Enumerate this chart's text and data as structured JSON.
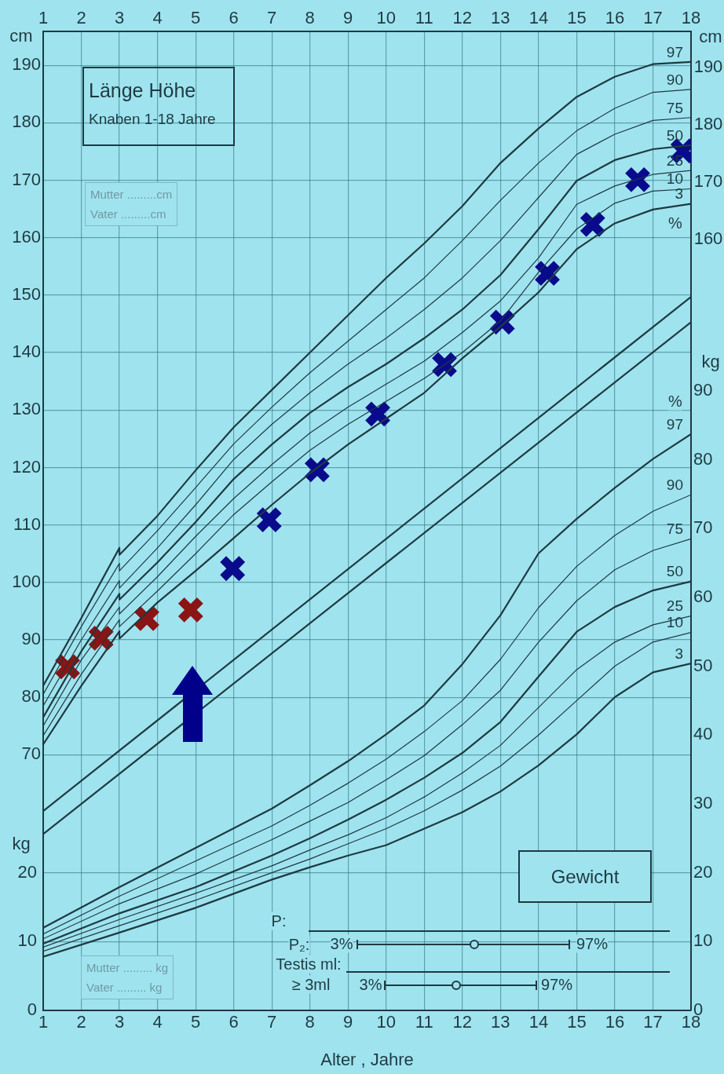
{
  "chart_data": {
    "type": "line",
    "title": "Länge Höhe",
    "subtitle": "Knaben 1-18 Jahre",
    "xlabel": "Alter , Jahre",
    "ylabel": "cm",
    "y2label": "kg",
    "y3label": "kg",
    "xlim": [
      1,
      18
    ],
    "xticks": [
      1,
      2,
      3,
      4,
      5,
      6,
      7,
      8,
      9,
      10,
      11,
      12,
      13,
      14,
      15,
      16,
      17,
      18
    ],
    "x2lim": [
      1,
      18
    ],
    "x2ticks": [
      1,
      2,
      3,
      4,
      5,
      6,
      7,
      8,
      9,
      10,
      11,
      12,
      13,
      14,
      15,
      16,
      17,
      18
    ],
    "ylim": [
      25.5,
      195.9
    ],
    "yticks": [
      70,
      80,
      90,
      100,
      110,
      120,
      130,
      140,
      150,
      160,
      170,
      180,
      190
    ],
    "y2lim": [
      0,
      142.2
    ],
    "y2ticks": [
      0,
      10,
      20,
      30,
      40,
      50,
      60,
      70,
      80,
      90
    ],
    "y3lim": [
      0,
      142.2
    ],
    "y3ticks": [
      0,
      10,
      20
    ],
    "grid": true,
    "marker": "none",
    "line_style": "solid",
    "annotations": [
      "Mutter .........cm",
      "Vater .........cm",
      "Mutter ......... kg",
      "Vater ......... kg",
      "Gewicht",
      "P:",
      "P₂:",
      "3%",
      "97%",
      "Testis ml:",
      "≥ 3ml",
      "3%",
      "97%",
      "%",
      "%",
      "cm",
      "190",
      "180",
      "170",
      "160"
    ],
    "series": [
      {
        "name": "97",
        "color": "#1e3a40",
        "x": [
          1,
          2,
          3,
          3,
          4,
          5,
          6,
          7,
          8,
          9,
          10,
          11,
          12,
          13,
          14,
          15,
          16,
          17,
          18
        ],
        "values": [
          82,
          93.8,
          106,
          104.8,
          111.6,
          119.5,
          127,
          133.5,
          140,
          146.5,
          153,
          159,
          165.5,
          173,
          179,
          184.5,
          188,
          190.2,
          190.6
        ]
      },
      {
        "name": "90",
        "color": "#1e3a40",
        "x": [
          1,
          2,
          3,
          3,
          4,
          5,
          6,
          7,
          8,
          9,
          10,
          11,
          12,
          13,
          14,
          15,
          16,
          17,
          18
        ],
        "values": [
          80.5,
          92.3,
          103.3,
          102,
          109,
          116.5,
          124.1,
          130.5,
          136.5,
          142,
          147.5,
          153,
          159.5,
          166.5,
          173,
          178.6,
          182.5,
          185.3,
          185.8
        ]
      },
      {
        "name": "75",
        "color": "#1e3a40",
        "x": [
          1,
          2,
          3,
          3,
          4,
          5,
          6,
          7,
          8,
          9,
          10,
          11,
          12,
          13,
          14,
          15,
          16,
          17,
          18
        ],
        "values": [
          78.5,
          90,
          100.3,
          99,
          106,
          113.5,
          121.4,
          127.5,
          133,
          138,
          142.5,
          147.5,
          153,
          159.5,
          167,
          174.5,
          178,
          180.4,
          180.9
        ]
      },
      {
        "name": "50",
        "color": "#1e3a40",
        "x": [
          1,
          2,
          3,
          3,
          4,
          5,
          6,
          7,
          8,
          9,
          10,
          11,
          12,
          13,
          14,
          15,
          16,
          17,
          18
        ],
        "values": [
          76.5,
          88,
          98,
          97,
          103.5,
          110.5,
          118,
          124,
          129.5,
          134,
          138,
          142.5,
          147.5,
          153.5,
          161.5,
          169.9,
          173.5,
          175.4,
          176.1
        ]
      },
      {
        "name": "25",
        "color": "#1e3a40",
        "x": [
          1,
          2,
          3,
          3,
          4,
          5,
          6,
          7,
          8,
          9,
          10,
          11,
          12,
          13,
          14,
          15,
          16,
          17,
          18
        ],
        "values": [
          75,
          86.5,
          95.7,
          94.5,
          101,
          108,
          114.6,
          120.5,
          126,
          130.5,
          134.5,
          138.5,
          143.5,
          149,
          156.5,
          165.8,
          169,
          171,
          171.7
        ]
      },
      {
        "name": "10",
        "color": "#1e3a40",
        "x": [
          1,
          2,
          3,
          3,
          4,
          5,
          6,
          7,
          8,
          9,
          10,
          11,
          12,
          13,
          14,
          15,
          16,
          17,
          18
        ],
        "values": [
          73.3,
          84,
          93.5,
          92.3,
          98.5,
          105,
          111.8,
          117.5,
          123,
          127.5,
          131.5,
          135.5,
          140,
          145.5,
          154,
          161.5,
          166,
          168.1,
          168.5
        ]
      },
      {
        "name": "3",
        "color": "#1e3a40",
        "x": [
          1,
          2,
          3,
          3,
          4,
          5,
          6,
          7,
          8,
          9,
          10,
          11,
          12,
          13,
          14,
          15,
          16,
          17,
          18
        ],
        "values": [
          71.8,
          82,
          91.5,
          90.2,
          96.5,
          102,
          107.7,
          113.5,
          119,
          124,
          128.5,
          133,
          139,
          144.5,
          150.5,
          158,
          162.5,
          164.9,
          165.9
        ]
      },
      {
        "name": "97",
        "color": "#1e3a40",
        "axis": "y2",
        "x": [
          1,
          3,
          5,
          7,
          8,
          9,
          10,
          11,
          12,
          13,
          14,
          15,
          16,
          17,
          18
        ],
        "values": [
          12,
          17.9,
          23.6,
          29.3,
          32.7,
          36.2,
          40.1,
          44.3,
          50.3,
          57.4,
          66.4,
          71.4,
          75.9,
          80.1,
          83.7
        ]
      },
      {
        "name": "90",
        "color": "#1e3a40",
        "axis": "y2",
        "x": [
          1,
          3,
          5,
          7,
          8,
          9,
          10,
          11,
          12,
          13,
          14,
          15,
          16,
          17,
          18
        ],
        "values": [
          11.1,
          16.6,
          21.7,
          26.8,
          29.8,
          33,
          36.5,
          40.5,
          45,
          51,
          58.5,
          64.5,
          69,
          72.5,
          74.9
        ]
      },
      {
        "name": "75",
        "color": "#1e3a40",
        "axis": "y2",
        "x": [
          1,
          3,
          5,
          7,
          8,
          9,
          10,
          11,
          12,
          13,
          14,
          15,
          16,
          17,
          18
        ],
        "values": [
          10.4,
          15.5,
          19.8,
          24.8,
          27.5,
          30.2,
          33.5,
          37,
          41.5,
          46.5,
          53.5,
          59.5,
          64,
          66.8,
          68.5
        ]
      },
      {
        "name": "50",
        "color": "#1e3a40",
        "axis": "y2",
        "x": [
          1,
          3,
          5,
          7,
          8,
          9,
          10,
          11,
          12,
          13,
          14,
          15,
          16,
          17,
          18
        ],
        "values": [
          9.7,
          14.1,
          17.9,
          22.5,
          25,
          27.7,
          30.6,
          33.8,
          37.4,
          41.9,
          48.5,
          55,
          58.6,
          61,
          62.3
        ]
      },
      {
        "name": "25",
        "color": "#1e3a40",
        "axis": "y2",
        "x": [
          1,
          3,
          5,
          7,
          8,
          9,
          10,
          11,
          12,
          13,
          14,
          15,
          16,
          17,
          18
        ],
        "values": [
          9.2,
          13.2,
          17,
          21,
          23.3,
          25.5,
          28,
          31,
          34.5,
          38.5,
          44,
          49.5,
          53.5,
          56,
          57.3
        ]
      },
      {
        "name": "10",
        "color": "#1e3a40",
        "axis": "y2",
        "x": [
          1,
          3,
          5,
          7,
          8,
          9,
          10,
          11,
          12,
          13,
          14,
          15,
          16,
          17,
          18
        ],
        "values": [
          8.6,
          12.3,
          16,
          20,
          22,
          24.2,
          26.4,
          29,
          32,
          35.5,
          40,
          45,
          50,
          53.5,
          54.9
        ]
      },
      {
        "name": "3",
        "color": "#1e3a40",
        "axis": "y2",
        "x": [
          1,
          3,
          5,
          7,
          8,
          9,
          10,
          11,
          12,
          13,
          14,
          15,
          16,
          17,
          18
        ],
        "values": [
          7.8,
          11.3,
          14.9,
          19,
          20.8,
          22.5,
          24,
          26.4,
          28.8,
          31.8,
          35.6,
          40.1,
          45.5,
          49.1,
          50.4
        ]
      },
      {
        "color": "#1e3a40",
        "x": [
          1,
          18
        ],
        "values": [
          60.2,
          149.7
        ]
      },
      {
        "color": "#1e3a40",
        "x": [
          1,
          18
        ],
        "values": [
          56.2,
          145.3
        ]
      },
      {
        "type": "scatter",
        "color": "#8b1414",
        "marker": "cross",
        "x": [
          1.64,
          2.52,
          3.72,
          4.87
        ],
        "values": [
          85.3,
          90.3,
          93.7,
          95.2
        ]
      },
      {
        "type": "scatter",
        "color": "#0a0a8c",
        "marker": "cross",
        "x": [
          5.97,
          6.93,
          8.19,
          9.78,
          11.53,
          13.05,
          14.23,
          15.42,
          16.6,
          17.79
        ],
        "values": [
          102.4,
          110.9,
          119.6,
          129.3,
          137.9,
          145.3,
          153.8,
          162.3,
          170.1,
          175.1
        ]
      }
    ]
  }
}
